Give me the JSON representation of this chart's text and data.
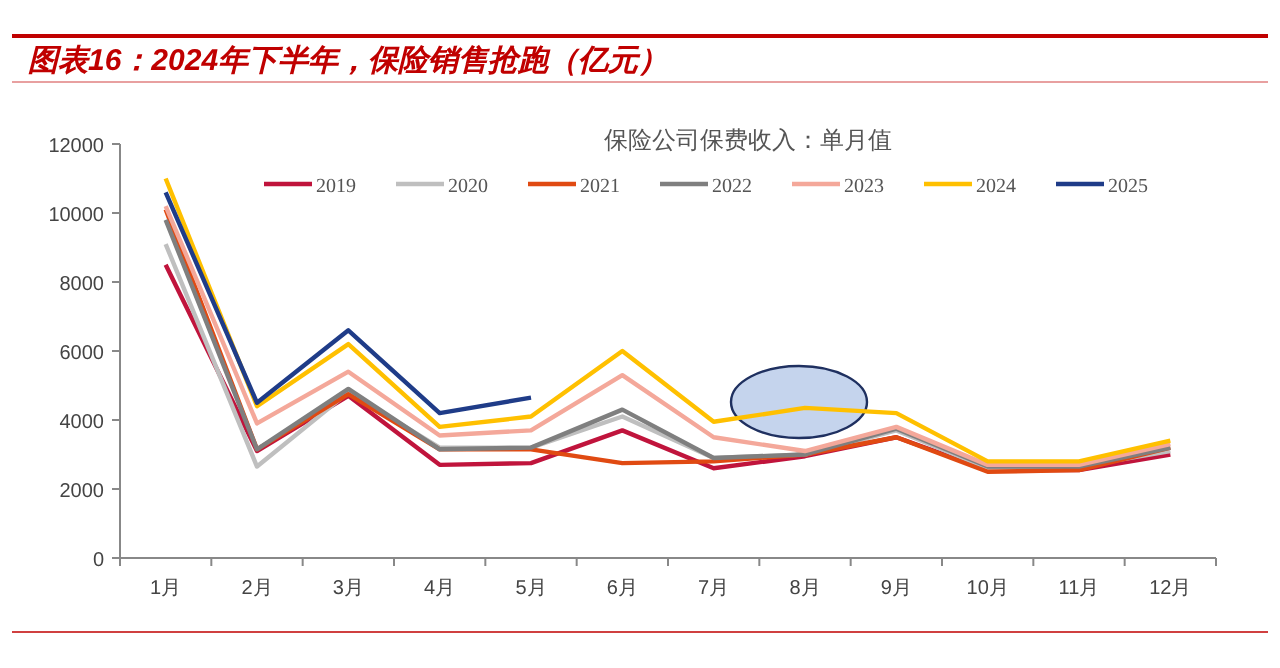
{
  "chart_data": {
    "type": "line",
    "title": "图表16：2024年下半年，保险销售抢跑（亿元）",
    "subtitle": "保险公司保费收入：单月值",
    "categories": [
      "1月",
      "2月",
      "3月",
      "4月",
      "5月",
      "6月",
      "7月",
      "8月",
      "9月",
      "10月",
      "11月",
      "12月"
    ],
    "series": [
      {
        "name": "2019",
        "color": "#c0143c",
        "values": [
          8500,
          3100,
          4700,
          2700,
          2750,
          3700,
          2600,
          2950,
          3500,
          2550,
          2550,
          3000
        ]
      },
      {
        "name": "2020",
        "color": "#bfbfbf",
        "values": [
          9100,
          2650,
          4800,
          3200,
          3200,
          4100,
          2900,
          3000,
          3700,
          2600,
          2650,
          3100
        ]
      },
      {
        "name": "2021",
        "color": "#e04a12",
        "values": [
          10100,
          3150,
          4750,
          3150,
          3150,
          2750,
          2800,
          3000,
          3500,
          2500,
          2550,
          3200
        ]
      },
      {
        "name": "2022",
        "color": "#7f7f7f",
        "values": [
          9800,
          3150,
          4900,
          3150,
          3200,
          4300,
          2900,
          3000,
          3750,
          2650,
          2650,
          3200
        ]
      },
      {
        "name": "2023",
        "color": "#f4a89a",
        "values": [
          10200,
          3900,
          5400,
          3550,
          3700,
          5300,
          3500,
          3100,
          3800,
          2700,
          2700,
          3300
        ]
      },
      {
        "name": "2024",
        "color": "#ffc000",
        "values": [
          11000,
          4400,
          6200,
          3800,
          4100,
          6000,
          3950,
          4350,
          4200,
          2800,
          2800,
          3400
        ]
      },
      {
        "name": "2025",
        "color": "#1f3c88",
        "values": [
          10600,
          4500,
          6600,
          4200,
          4650,
          null,
          null,
          null,
          null,
          null,
          null,
          null
        ]
      }
    ],
    "ylim": [
      0,
      12000
    ],
    "yticks": [
      0,
      2000,
      4000,
      6000,
      8000,
      10000,
      12000
    ],
    "legend": "top",
    "grid": false
  }
}
